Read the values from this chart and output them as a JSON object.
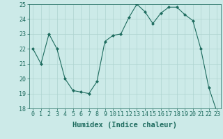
{
  "x": [
    0,
    1,
    2,
    3,
    4,
    5,
    6,
    7,
    8,
    9,
    10,
    11,
    12,
    13,
    14,
    15,
    16,
    17,
    18,
    19,
    20,
    21,
    22,
    23
  ],
  "y": [
    22,
    21,
    23,
    22,
    20,
    19.2,
    19.1,
    19,
    19.8,
    22.5,
    22.9,
    23,
    24.1,
    25,
    24.5,
    23.7,
    24.4,
    24.8,
    24.8,
    24.3,
    23.9,
    22,
    19.4,
    17.8
  ],
  "line_color": "#1d6b5e",
  "marker_color": "#1d6b5e",
  "bg_color": "#cceae8",
  "grid_color": "#aed4d0",
  "axis_label": "Humidex (Indice chaleur)",
  "ylim": [
    18,
    25
  ],
  "yticks": [
    18,
    19,
    20,
    21,
    22,
    23,
    24,
    25
  ],
  "xticks": [
    0,
    1,
    2,
    3,
    4,
    5,
    6,
    7,
    8,
    9,
    10,
    11,
    12,
    13,
    14,
    15,
    16,
    17,
    18,
    19,
    20,
    21,
    22,
    23
  ],
  "tick_fontsize": 6.0,
  "label_fontsize": 7.5
}
